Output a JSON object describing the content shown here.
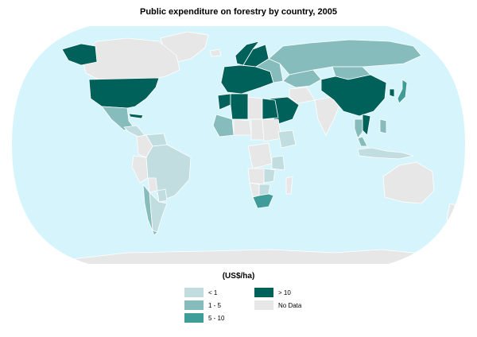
{
  "title": "Public expenditure on forestry by country, 2005",
  "unit": "(US$/ha)",
  "colors": {
    "ocean": "#d6f4fb",
    "no_data": "#e7e7e7",
    "lt1": "#c1dde0",
    "1_5": "#86bcbc",
    "5_10": "#3f9c99",
    "gt10": "#00605a",
    "border": "#ffffff"
  },
  "legend": {
    "lt1": "< 1",
    "gt10": "> 10",
    "r1_5": "1 - 5",
    "no_data": "No Data",
    "r5_10": "5 - 10"
  },
  "map_data": {
    "United States": "gt10",
    "Canada": "no_data",
    "Alaska": "gt10",
    "Mexico": "1_5",
    "Cuba": "gt10",
    "Central America": "lt1",
    "Venezuela": "lt1",
    "Colombia": "no_data",
    "Peru": "no_data",
    "Brazil": "lt1",
    "Bolivia": "no_data",
    "Paraguay": "lt1",
    "Argentina": "lt1",
    "Chile": "1_5",
    "Greenland": "no_data",
    "Iceland": "no_data",
    "Norway": "gt10",
    "Finland": "gt10",
    "Western Europe": "gt10",
    "Eastern Europe": "1_5",
    "Russia": "1_5",
    "Kazakhstan": "1_5",
    "Morocco": "gt10",
    "Algeria": "gt10",
    "Libya": "no_data",
    "Egypt": "gt10",
    "Saudi Arabia": "gt10",
    "Iran": "no_data",
    "India": "no_data",
    "Mongolia": "1_5",
    "China": "gt10",
    "South Korea": "gt10",
    "Japan": "5_10",
    "Vietnam": "gt10",
    "Thailand": "1_5",
    "Malaysia": "1_5",
    "Indonesia": "lt1",
    "Philippines": "1_5",
    "Australia": "no_data",
    "New Zealand": "no_data",
    "Mali": "1_5",
    "Niger": "no_data",
    "Chad": "no_data",
    "Sudan": "no_data",
    "Ethiopia": "lt1",
    "DR Congo": "no_data",
    "Tanzania": "lt1",
    "Angola": "no_data",
    "Zambia": "lt1",
    "Namibia": "no_data",
    "Botswana": "lt1",
    "South Africa": "5_10",
    "Madagascar": "no_data",
    "Antarctica": "no_data"
  }
}
